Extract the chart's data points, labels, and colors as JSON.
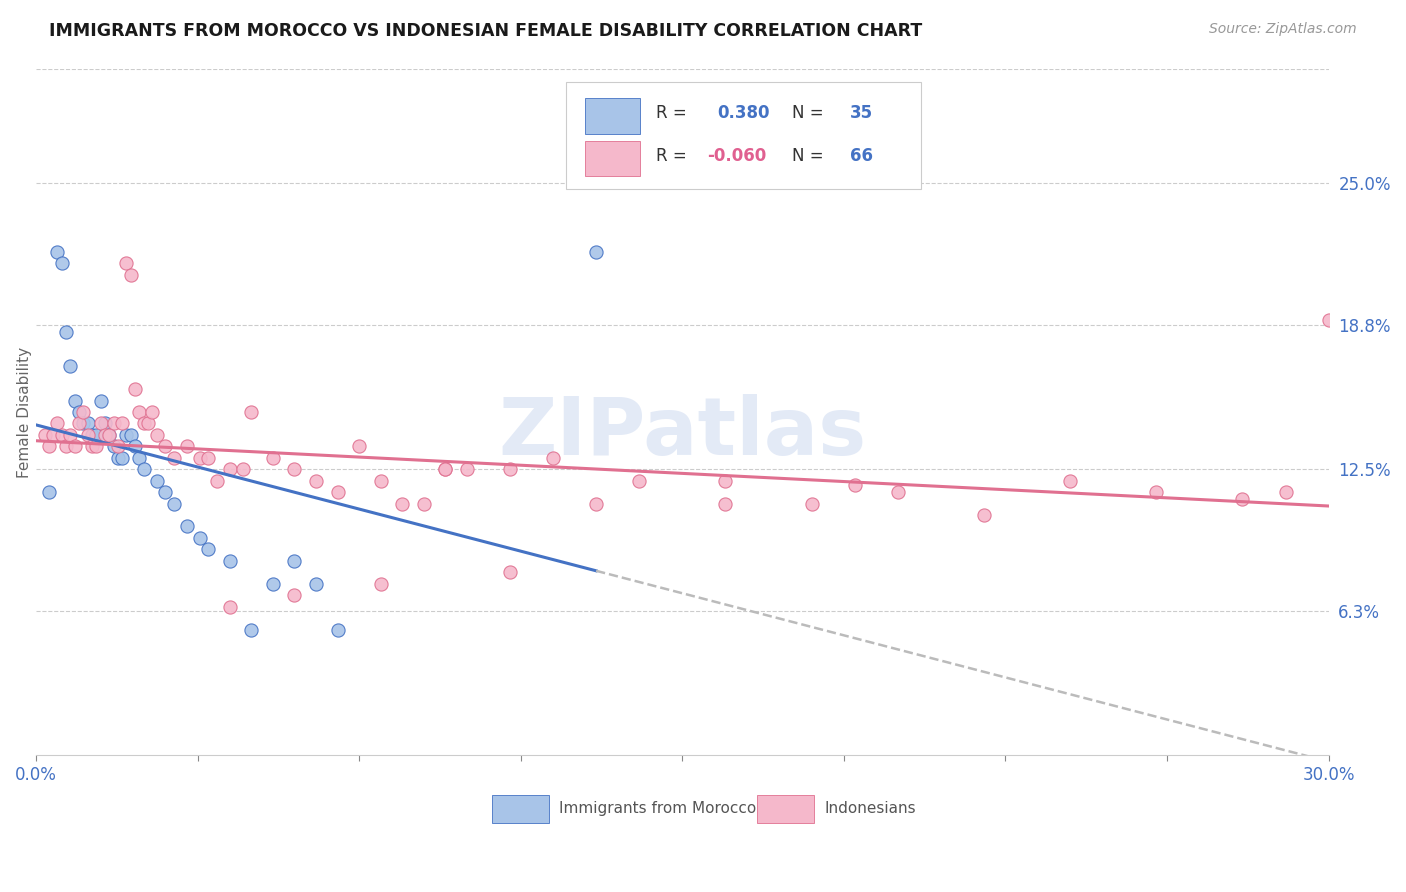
{
  "title": "IMMIGRANTS FROM MOROCCO VS INDONESIAN FEMALE DISABILITY CORRELATION CHART",
  "source": "Source: ZipAtlas.com",
  "ylabel_label": "Female Disability",
  "legend_label1": "Immigrants from Morocco",
  "legend_label2": "Indonesians",
  "R1": 0.38,
  "N1": 35,
  "R2": -0.06,
  "N2": 66,
  "color1": "#a8c4e8",
  "color2": "#f5b8cb",
  "line1_color": "#4472c4",
  "line2_color": "#e07090",
  "dash_color": "#bbbbbb",
  "watermark": "ZIPatlas",
  "xlim": [
    0.0,
    0.3
  ],
  "ylim": [
    0.0,
    0.3
  ],
  "yticks_right": [
    0.063,
    0.125,
    0.188,
    0.25
  ],
  "yticks_right_labels": [
    "6.3%",
    "12.5%",
    "18.8%",
    "25.0%"
  ],
  "xtick_positions": [
    0.0,
    0.0375,
    0.075,
    0.1125,
    0.15,
    0.1875,
    0.225,
    0.2625,
    0.3
  ],
  "xtick_labels_show": {
    "0.0": "0.0%",
    "0.30": "30.0%"
  },
  "morocco_x": [
    0.003,
    0.005,
    0.006,
    0.007,
    0.008,
    0.009,
    0.01,
    0.011,
    0.012,
    0.013,
    0.014,
    0.015,
    0.016,
    0.017,
    0.018,
    0.019,
    0.02,
    0.021,
    0.022,
    0.023,
    0.024,
    0.025,
    0.028,
    0.03,
    0.032,
    0.035,
    0.038,
    0.04,
    0.045,
    0.05,
    0.055,
    0.06,
    0.065,
    0.07,
    0.13
  ],
  "morocco_y": [
    0.115,
    0.22,
    0.215,
    0.185,
    0.17,
    0.155,
    0.15,
    0.145,
    0.145,
    0.14,
    0.14,
    0.155,
    0.145,
    0.14,
    0.135,
    0.13,
    0.13,
    0.14,
    0.14,
    0.135,
    0.13,
    0.125,
    0.12,
    0.115,
    0.11,
    0.1,
    0.095,
    0.09,
    0.085,
    0.055,
    0.075,
    0.085,
    0.075,
    0.055,
    0.22
  ],
  "indonesian_x": [
    0.002,
    0.003,
    0.004,
    0.005,
    0.006,
    0.007,
    0.008,
    0.009,
    0.01,
    0.011,
    0.012,
    0.013,
    0.014,
    0.015,
    0.016,
    0.017,
    0.018,
    0.019,
    0.02,
    0.021,
    0.022,
    0.023,
    0.024,
    0.025,
    0.026,
    0.027,
    0.028,
    0.03,
    0.032,
    0.035,
    0.038,
    0.04,
    0.042,
    0.045,
    0.048,
    0.05,
    0.055,
    0.06,
    0.065,
    0.07,
    0.075,
    0.08,
    0.085,
    0.09,
    0.095,
    0.1,
    0.11,
    0.12,
    0.14,
    0.16,
    0.18,
    0.2,
    0.22,
    0.24,
    0.26,
    0.28,
    0.29,
    0.3,
    0.16,
    0.19,
    0.095,
    0.11,
    0.13,
    0.045,
    0.06,
    0.08
  ],
  "indonesian_y": [
    0.14,
    0.135,
    0.14,
    0.145,
    0.14,
    0.135,
    0.14,
    0.135,
    0.145,
    0.15,
    0.14,
    0.135,
    0.135,
    0.145,
    0.14,
    0.14,
    0.145,
    0.135,
    0.145,
    0.215,
    0.21,
    0.16,
    0.15,
    0.145,
    0.145,
    0.15,
    0.14,
    0.135,
    0.13,
    0.135,
    0.13,
    0.13,
    0.12,
    0.125,
    0.125,
    0.15,
    0.13,
    0.125,
    0.12,
    0.115,
    0.135,
    0.12,
    0.11,
    0.11,
    0.125,
    0.125,
    0.125,
    0.13,
    0.12,
    0.11,
    0.11,
    0.115,
    0.105,
    0.12,
    0.115,
    0.112,
    0.115,
    0.19,
    0.12,
    0.118,
    0.125,
    0.08,
    0.11,
    0.065,
    0.07,
    0.075
  ]
}
